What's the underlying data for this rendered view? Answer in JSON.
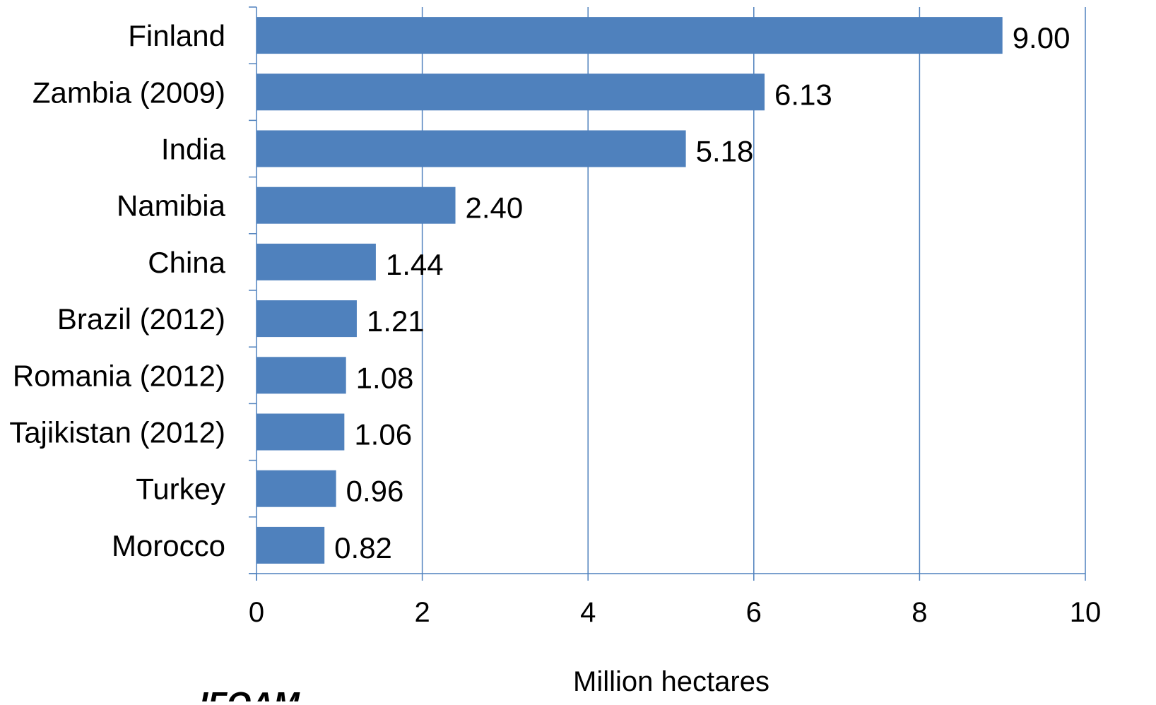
{
  "chart_data": {
    "type": "bar",
    "orientation": "horizontal",
    "categories": [
      "Finland",
      "Zambia (2009)",
      "India",
      "Namibia",
      "China",
      "Brazil (2012)",
      "Romania (2012)",
      "Tajikistan (2012)",
      "Turkey",
      "Morocco"
    ],
    "values": [
      9.0,
      6.13,
      5.18,
      2.4,
      1.44,
      1.21,
      1.08,
      1.06,
      0.96,
      0.82
    ],
    "data_labels": [
      "9.00",
      "6.13",
      "5.18",
      "2.40",
      "1.44",
      "1.21",
      "1.08",
      "1.06",
      "0.96",
      "0.82"
    ],
    "xlabel": "Million hectares",
    "ylabel": "",
    "title": "",
    "xlim": [
      0,
      10
    ],
    "x_ticks": [
      0,
      2,
      4,
      6,
      8,
      10
    ],
    "x_tick_labels": [
      "0",
      "2",
      "4",
      "6",
      "8",
      "10"
    ],
    "grid": "vertical",
    "legend": "none",
    "bar_color": "#4f81bd",
    "grid_color": "#4f81bd"
  },
  "logo": {
    "text": "IFOAM",
    "color": "#8cbf26"
  }
}
